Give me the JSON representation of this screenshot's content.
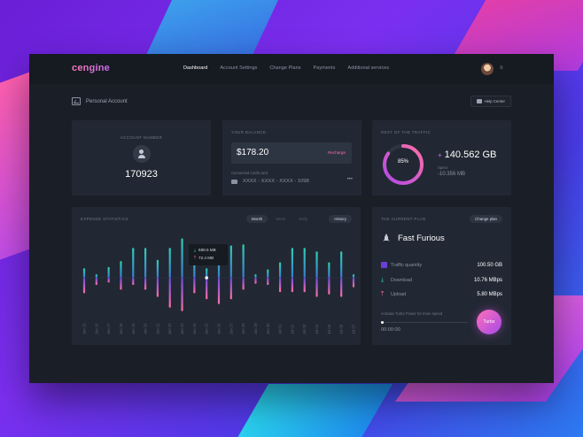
{
  "brand": {
    "logo": "cengine"
  },
  "nav": [
    "Dashboard",
    "Account Settings",
    "Change Plans",
    "Payments",
    "Additional services"
  ],
  "page": {
    "title": "Personal Account",
    "help_label": "Help Center"
  },
  "account": {
    "label": "Account number",
    "number": "170923"
  },
  "balance": {
    "label": "Your balance",
    "amount": "$178.20",
    "recharge_label": "Recharge",
    "card_label": "Connected credit card",
    "card_number": "XXXX - XXXX - XXXX - 1098",
    "more_label": "•••"
  },
  "traffic": {
    "label": "Rest of the traffic",
    "percent": "85%",
    "percent_value": 85,
    "remaining_plus": "+",
    "remaining": "140.562 GB",
    "spent_label": "Spent",
    "spent": "-10.356 MB"
  },
  "stats": {
    "label": "Expense statistics",
    "segments": [
      "Month",
      "Week",
      "Daily"
    ],
    "history_label": "History",
    "tooltip": {
      "down": "689.5 MB",
      "up": "72.4 MB"
    }
  },
  "chart_data": {
    "type": "bar",
    "categories": [
      "Jun 15",
      "Jun 16",
      "Jun 17",
      "Jun 18",
      "Jun 19",
      "Jun 20",
      "Jun 21",
      "Jun 22",
      "Jun 23",
      "Jun 24",
      "Jun 25",
      "Jun 26",
      "Jun 27",
      "Jun 28",
      "Jun 29",
      "Jun 30",
      "Jul 01",
      "Jul 02",
      "Jul 03",
      "Jul 04",
      "Jul 05",
      "Jul 06",
      "Jul 07"
    ],
    "series": [
      {
        "name": "Download",
        "values": [
          8,
          3,
          9,
          14,
          25,
          25,
          15,
          25,
          33,
          18,
          8,
          22,
          27,
          28,
          3,
          7,
          13,
          25,
          25,
          22,
          13,
          22,
          3
        ]
      },
      {
        "name": "Upload",
        "values": [
          -13,
          -6,
          -4,
          -10,
          -6,
          -10,
          -16,
          -25,
          -28,
          -13,
          -18,
          -22,
          -18,
          -10,
          -5,
          -6,
          -12,
          -12,
          -12,
          -16,
          -14,
          -16,
          -8
        ]
      }
    ],
    "colors": {
      "download": "#2fd0b4",
      "upload": "#ff6ea9"
    },
    "selected_category": "Jun 25"
  },
  "plan": {
    "label": "The current plan",
    "change_label": "Change plan",
    "name": "Fast Furious",
    "rows": [
      {
        "label": "Traffic quantity",
        "value": "100.50 GB"
      },
      {
        "label": "Download",
        "value": "10.76 MBps"
      },
      {
        "label": "Upload",
        "value": "5.80 MBps"
      }
    ],
    "turbo_label": "Activate Turbo Power for more speed",
    "turbo_time": "00:00:00",
    "turbo_button": "Turbo"
  }
}
